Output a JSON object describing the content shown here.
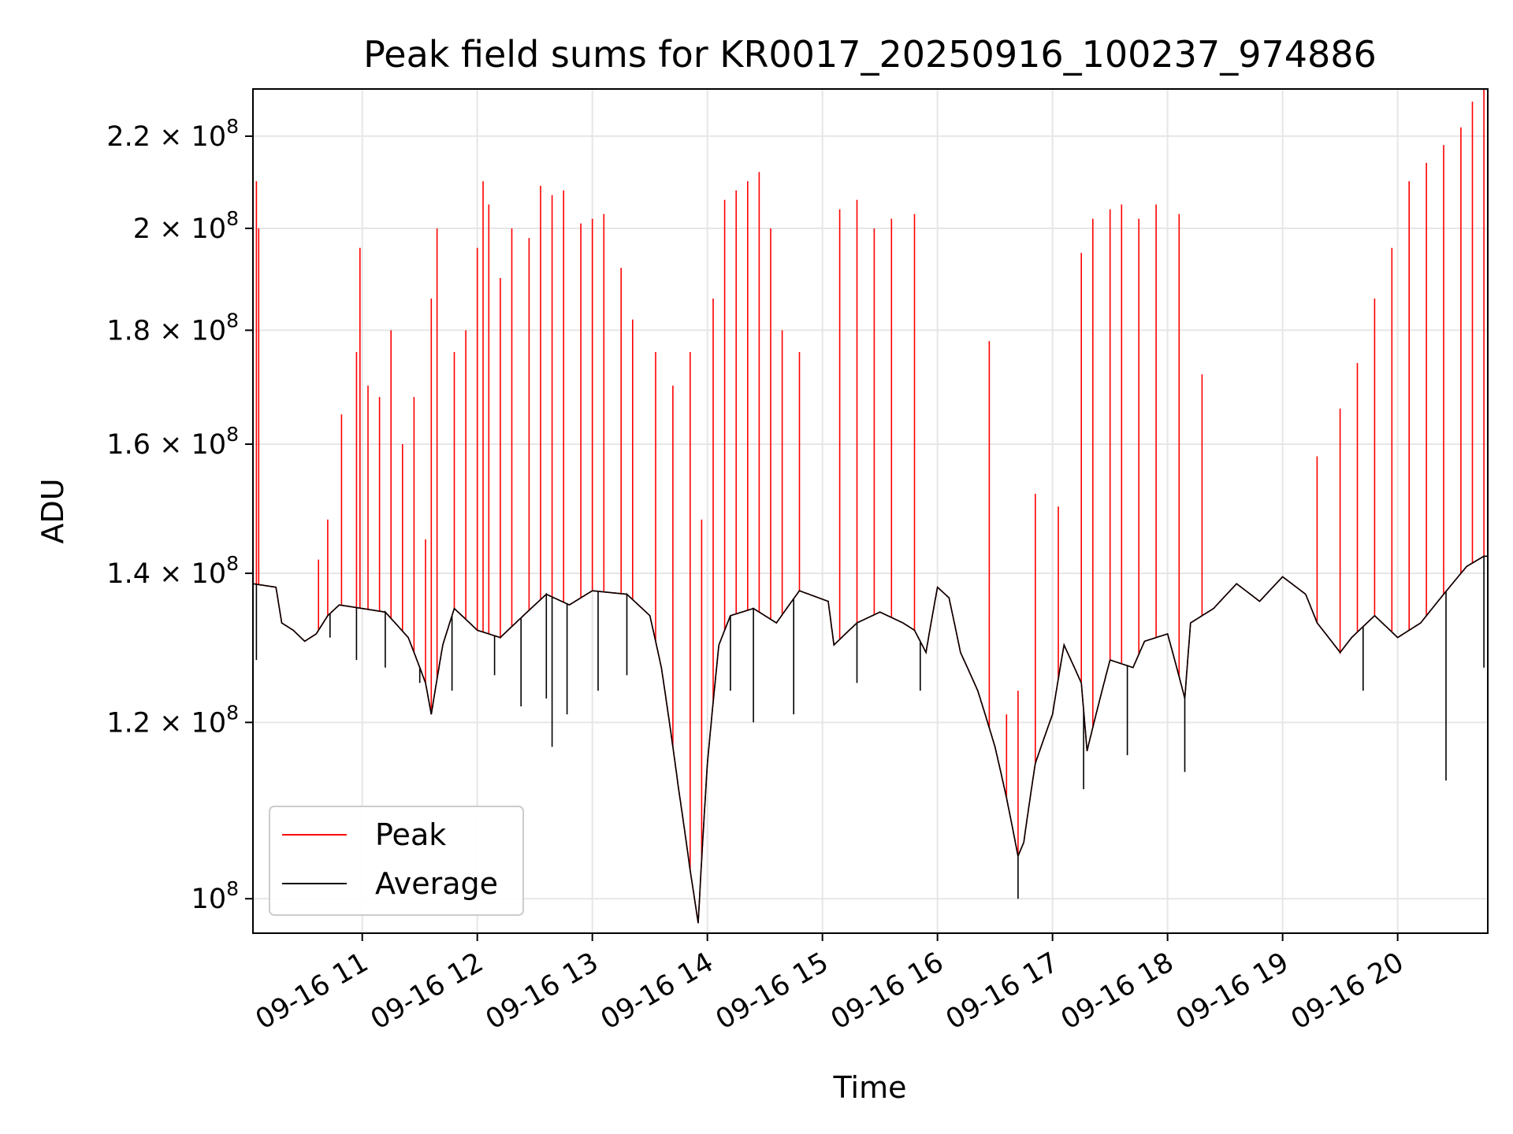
{
  "chart_data": {
    "type": "line",
    "title": "Peak field sums for KR0017_20250916_100237_974886",
    "xlabel": "Time",
    "ylabel": "ADU",
    "x_range": [
      "2025-09-16 10:03",
      "2025-09-16 20:47"
    ],
    "y_scale": "log",
    "ylim": [
      96500000,
      231000000
    ],
    "grid": true,
    "legend_position": "lower-left",
    "x_ticks": [
      "09-16 11",
      "09-16 12",
      "09-16 13",
      "09-16 14",
      "09-16 15",
      "09-16 16",
      "09-16 17",
      "09-16 18",
      "09-16 19",
      "09-16 20"
    ],
    "y_ticks": [
      {
        "value": 100000000,
        "mantissa": "",
        "exp": "8",
        "base": "10"
      },
      {
        "value": 120000000,
        "mantissa": "1.2 × ",
        "exp": "8",
        "base": "10"
      },
      {
        "value": 140000000,
        "mantissa": "1.4 × ",
        "exp": "8",
        "base": "10"
      },
      {
        "value": 160000000,
        "mantissa": "1.6 × ",
        "exp": "8",
        "base": "10"
      },
      {
        "value": 180000000,
        "mantissa": "1.8 × ",
        "exp": "8",
        "base": "10"
      },
      {
        "value": 200000000,
        "mantissa": "2 × ",
        "exp": "8",
        "base": "10"
      },
      {
        "value": 220000000,
        "mantissa": "2.2 × ",
        "exp": "8",
        "base": "10"
      }
    ],
    "baseline_hours": [
      10.05,
      10.25,
      10.3,
      10.4,
      10.5,
      10.6,
      10.7,
      10.8,
      11.0,
      11.2,
      11.4,
      11.55,
      11.6,
      11.7,
      11.8,
      12.0,
      12.2,
      12.4,
      12.6,
      12.8,
      13.0,
      13.3,
      13.5,
      13.6,
      13.75,
      13.85,
      13.92,
      14.0,
      14.1,
      14.2,
      14.4,
      14.6,
      14.8,
      15.05,
      15.1,
      15.3,
      15.5,
      15.7,
      15.8,
      15.9,
      16.0,
      16.1,
      16.2,
      16.35,
      16.5,
      16.6,
      16.7,
      16.75,
      16.85,
      17.0,
      17.1,
      17.25,
      17.3,
      17.5,
      17.7,
      17.8,
      18.0,
      18.15,
      18.2,
      18.4,
      18.6,
      18.8,
      19.0,
      19.2,
      19.3,
      19.5,
      19.6,
      19.8,
      20.0,
      20.2,
      20.4,
      20.6,
      20.75
    ],
    "baseline_adu": [
      138500000,
      138000000,
      133000000,
      132000000,
      130500000,
      131500000,
      134000000,
      135500000,
      135000000,
      134500000,
      131000000,
      125000000,
      121000000,
      130000000,
      135000000,
      132000000,
      131000000,
      134000000,
      137000000,
      135500000,
      137500000,
      137000000,
      134000000,
      127000000,
      112000000,
      103000000,
      97500000,
      115000000,
      130000000,
      134000000,
      135000000,
      133000000,
      137500000,
      136000000,
      130000000,
      133000000,
      134500000,
      133000000,
      132000000,
      129000000,
      138000000,
      136500000,
      129000000,
      124000000,
      117000000,
      111000000,
      104500000,
      106000000,
      115000000,
      121000000,
      130000000,
      125000000,
      116500000,
      128000000,
      127000000,
      130500000,
      131500000,
      123000000,
      133000000,
      135000000,
      138500000,
      136000000,
      139500000,
      137000000,
      133000000,
      129000000,
      131000000,
      134000000,
      131000000,
      133000000,
      137000000,
      141000000,
      142500000
    ],
    "series": [
      {
        "name": "Peak",
        "color": "#ff0000",
        "spikes": [
          {
            "hour": 10.08,
            "adu": 210000000
          },
          {
            "hour": 10.1,
            "adu": 200000000
          },
          {
            "hour": 10.62,
            "adu": 142000000
          },
          {
            "hour": 10.7,
            "adu": 148000000
          },
          {
            "hour": 10.82,
            "adu": 165000000
          },
          {
            "hour": 10.95,
            "adu": 176000000
          },
          {
            "hour": 10.98,
            "adu": 196000000
          },
          {
            "hour": 11.05,
            "adu": 170000000
          },
          {
            "hour": 11.15,
            "adu": 168000000
          },
          {
            "hour": 11.25,
            "adu": 180000000
          },
          {
            "hour": 11.35,
            "adu": 160000000
          },
          {
            "hour": 11.45,
            "adu": 168000000
          },
          {
            "hour": 11.55,
            "adu": 145000000
          },
          {
            "hour": 11.6,
            "adu": 186000000
          },
          {
            "hour": 11.65,
            "adu": 200000000
          },
          {
            "hour": 11.8,
            "adu": 176000000
          },
          {
            "hour": 11.9,
            "adu": 180000000
          },
          {
            "hour": 12.0,
            "adu": 196000000
          },
          {
            "hour": 12.05,
            "adu": 210000000
          },
          {
            "hour": 12.1,
            "adu": 205000000
          },
          {
            "hour": 12.2,
            "adu": 190000000
          },
          {
            "hour": 12.3,
            "adu": 200000000
          },
          {
            "hour": 12.45,
            "adu": 198000000
          },
          {
            "hour": 12.55,
            "adu": 209000000
          },
          {
            "hour": 12.65,
            "adu": 207000000
          },
          {
            "hour": 12.75,
            "adu": 208000000
          },
          {
            "hour": 12.9,
            "adu": 201000000
          },
          {
            "hour": 13.0,
            "adu": 202000000
          },
          {
            "hour": 13.1,
            "adu": 203000000
          },
          {
            "hour": 13.25,
            "adu": 192000000
          },
          {
            "hour": 13.35,
            "adu": 182000000
          },
          {
            "hour": 13.55,
            "adu": 176000000
          },
          {
            "hour": 13.7,
            "adu": 170000000
          },
          {
            "hour": 13.85,
            "adu": 176000000
          },
          {
            "hour": 13.95,
            "adu": 148000000
          },
          {
            "hour": 14.05,
            "adu": 186000000
          },
          {
            "hour": 14.15,
            "adu": 206000000
          },
          {
            "hour": 14.25,
            "adu": 208000000
          },
          {
            "hour": 14.35,
            "adu": 210000000
          },
          {
            "hour": 14.45,
            "adu": 212000000
          },
          {
            "hour": 14.55,
            "adu": 200000000
          },
          {
            "hour": 14.65,
            "adu": 180000000
          },
          {
            "hour": 14.8,
            "adu": 176000000
          },
          {
            "hour": 15.15,
            "adu": 204000000
          },
          {
            "hour": 15.3,
            "adu": 206000000
          },
          {
            "hour": 15.45,
            "adu": 200000000
          },
          {
            "hour": 15.6,
            "adu": 202000000
          },
          {
            "hour": 15.8,
            "adu": 203000000
          },
          {
            "hour": 16.45,
            "adu": 178000000
          },
          {
            "hour": 16.6,
            "adu": 121000000
          },
          {
            "hour": 16.7,
            "adu": 124000000
          },
          {
            "hour": 16.85,
            "adu": 152000000
          },
          {
            "hour": 17.05,
            "adu": 150000000
          },
          {
            "hour": 17.25,
            "adu": 195000000
          },
          {
            "hour": 17.35,
            "adu": 202000000
          },
          {
            "hour": 17.5,
            "adu": 204000000
          },
          {
            "hour": 17.6,
            "adu": 205000000
          },
          {
            "hour": 17.75,
            "adu": 202000000
          },
          {
            "hour": 17.9,
            "adu": 205000000
          },
          {
            "hour": 18.1,
            "adu": 203000000
          },
          {
            "hour": 18.3,
            "adu": 172000000
          },
          {
            "hour": 19.3,
            "adu": 158000000
          },
          {
            "hour": 19.5,
            "adu": 166000000
          },
          {
            "hour": 19.65,
            "adu": 174000000
          },
          {
            "hour": 19.8,
            "adu": 186000000
          },
          {
            "hour": 19.95,
            "adu": 196000000
          },
          {
            "hour": 20.1,
            "adu": 210000000
          },
          {
            "hour": 20.25,
            "adu": 214000000
          },
          {
            "hour": 20.4,
            "adu": 218000000
          },
          {
            "hour": 20.55,
            "adu": 222000000
          },
          {
            "hour": 20.65,
            "adu": 228000000
          },
          {
            "hour": 20.75,
            "adu": 231000000
          }
        ]
      },
      {
        "name": "Average",
        "color": "#000000",
        "dips": [
          {
            "hour": 10.08,
            "adu": 128000000
          },
          {
            "hour": 10.72,
            "adu": 131000000
          },
          {
            "hour": 10.95,
            "adu": 128000000
          },
          {
            "hour": 11.2,
            "adu": 127000000
          },
          {
            "hour": 11.5,
            "adu": 125000000
          },
          {
            "hour": 11.78,
            "adu": 124000000
          },
          {
            "hour": 12.15,
            "adu": 126000000
          },
          {
            "hour": 12.38,
            "adu": 122000000
          },
          {
            "hour": 12.6,
            "adu": 123000000
          },
          {
            "hour": 12.65,
            "adu": 117000000
          },
          {
            "hour": 12.78,
            "adu": 121000000
          },
          {
            "hour": 13.05,
            "adu": 124000000
          },
          {
            "hour": 13.3,
            "adu": 126000000
          },
          {
            "hour": 14.2,
            "adu": 124000000
          },
          {
            "hour": 14.4,
            "adu": 120000000
          },
          {
            "hour": 14.75,
            "adu": 121000000
          },
          {
            "hour": 15.3,
            "adu": 125000000
          },
          {
            "hour": 15.85,
            "adu": 124000000
          },
          {
            "hour": 16.7,
            "adu": 100000000
          },
          {
            "hour": 17.27,
            "adu": 112000000
          },
          {
            "hour": 17.65,
            "adu": 116000000
          },
          {
            "hour": 18.15,
            "adu": 114000000
          },
          {
            "hour": 19.7,
            "adu": 124000000
          },
          {
            "hour": 20.42,
            "adu": 113000000
          },
          {
            "hour": 20.75,
            "adu": 127000000
          }
        ]
      }
    ]
  }
}
